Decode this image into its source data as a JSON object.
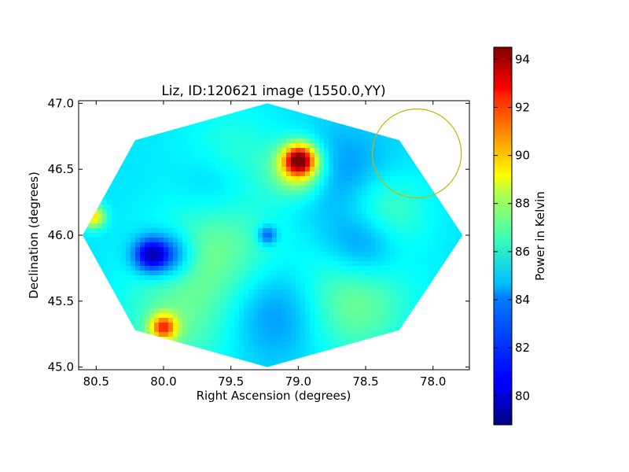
{
  "chart_data": {
    "type": "heatmap",
    "title": "Liz, ID:120621 image (1550.0,YY)",
    "xlabel": "Right Ascension (degrees)",
    "ylabel": "Declination (degrees)",
    "xlim": [
      80.63,
      77.73
    ],
    "ylim": [
      44.98,
      47.02
    ],
    "x_inverted": true,
    "x_ticks": [
      "80.5",
      "80.0",
      "79.5",
      "79.0",
      "78.5",
      "78.0"
    ],
    "x_tick_values": [
      80.5,
      80.0,
      79.5,
      79.0,
      78.5,
      78.0
    ],
    "y_ticks": [
      "45.0",
      "45.5",
      "46.0",
      "46.5",
      "47.0"
    ],
    "y_tick_values": [
      45.0,
      45.5,
      46.0,
      46.5,
      47.0
    ],
    "colormap": "jet",
    "colorbar": {
      "label": "Power in Kelvin",
      "range": [
        78.8,
        94.5
      ],
      "ticks": [
        "80",
        "82",
        "84",
        "86",
        "88",
        "90",
        "92",
        "94"
      ],
      "tick_values": [
        80,
        82,
        84,
        86,
        88,
        90,
        92,
        94
      ]
    },
    "field_outline": [
      [
        79.23,
        47.0
      ],
      [
        78.25,
        46.72
      ],
      [
        77.78,
        46.0
      ],
      [
        78.25,
        45.28
      ],
      [
        79.23,
        45.0
      ],
      [
        80.21,
        45.28
      ],
      [
        80.6,
        46.0
      ],
      [
        80.21,
        46.72
      ]
    ],
    "background_level": 84.3,
    "features": [
      {
        "ra": 78.99,
        "dec": 46.57,
        "sigma": 0.08,
        "level": 92.8
      },
      {
        "ra": 79.0,
        "dec": 46.5,
        "sigma": 0.14,
        "level": 88.0
      },
      {
        "ra": 80.0,
        "dec": 45.3,
        "sigma": 0.07,
        "level": 90.5
      },
      {
        "ra": 80.52,
        "dec": 46.14,
        "sigma": 0.06,
        "level": 89.0
      },
      {
        "ra": 79.6,
        "dec": 45.9,
        "sigma": 0.3,
        "level": 86.2
      },
      {
        "ra": 78.6,
        "dec": 45.5,
        "sigma": 0.3,
        "level": 86.5
      },
      {
        "ra": 78.4,
        "dec": 46.15,
        "sigma": 0.22,
        "level": 86.8
      },
      {
        "ra": 79.5,
        "dec": 46.55,
        "sigma": 0.25,
        "level": 85.8
      },
      {
        "ra": 79.9,
        "dec": 45.35,
        "sigma": 0.3,
        "level": 86.0
      },
      {
        "ra": 79.95,
        "dec": 45.85,
        "sigma": 0.12,
        "level": 81.6
      },
      {
        "ra": 80.1,
        "dec": 45.85,
        "sigma": 0.09,
        "level": 80.0
      },
      {
        "ra": 78.5,
        "dec": 45.96,
        "sigma": 0.2,
        "level": 81.6
      },
      {
        "ra": 78.65,
        "dec": 46.45,
        "sigma": 0.25,
        "level": 82.8
      },
      {
        "ra": 79.6,
        "dec": 46.4,
        "sigma": 0.2,
        "level": 82.8
      },
      {
        "ra": 79.15,
        "dec": 45.4,
        "sigma": 0.25,
        "level": 82.7
      },
      {
        "ra": 79.23,
        "dec": 46.0,
        "sigma": 0.05,
        "level": 81.5
      }
    ],
    "beam_circle": {
      "ra": 78.12,
      "dec": 46.62,
      "radius_deg": 0.33,
      "color": "#c8b400"
    }
  }
}
